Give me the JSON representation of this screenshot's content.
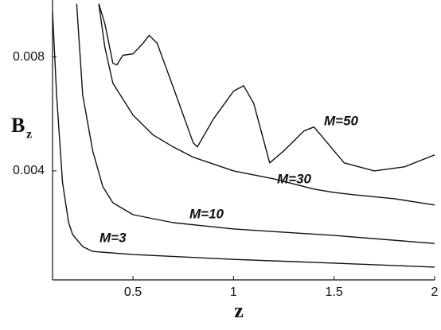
{
  "chart_data": {
    "type": "line",
    "xlabel": "z",
    "ylabel": "B",
    "ylabel_sub": "z",
    "xlim": [
      0.1,
      2
    ],
    "ylim": [
      0.00017,
      0.01
    ],
    "xticks": [
      0.5,
      1,
      1.5,
      2
    ],
    "yticks": [
      0.004,
      0.008
    ],
    "series": [
      {
        "name": "M=3",
        "color": "#111111",
        "x": [
          0.1,
          0.12,
          0.15,
          0.18,
          0.2,
          0.25,
          0.3,
          0.5,
          1,
          1.5,
          2
        ],
        "values": [
          0.0096,
          0.00666,
          0.00358,
          0.00218,
          0.00176,
          0.00134,
          0.00117,
          0.00106,
          0.00089,
          0.00076,
          0.00062
        ]
      },
      {
        "name": "M=10",
        "color": "#111111",
        "x": [
          0.22,
          0.25,
          0.3,
          0.35,
          0.4,
          0.5,
          0.7,
          1,
          1.5,
          2
        ],
        "values": [
          0.00987,
          0.00666,
          0.0047,
          0.00344,
          0.00288,
          0.00246,
          0.00218,
          0.00196,
          0.00173,
          0.00145
        ]
      },
      {
        "name": "M=30",
        "color": "#111111",
        "x": [
          0.33,
          0.36,
          0.4,
          0.5,
          0.6,
          0.7,
          0.8,
          1,
          1.2,
          1.4,
          1.5,
          1.6,
          1.8,
          2
        ],
        "values": [
          0.00987,
          0.00834,
          0.00708,
          0.00596,
          0.00526,
          0.00484,
          0.00448,
          0.004,
          0.00372,
          0.00336,
          0.00324,
          0.00316,
          0.00302,
          0.0028
        ]
      },
      {
        "name": "M=50",
        "color": "#111111",
        "x": [
          0.33,
          0.36,
          0.4,
          0.42,
          0.45,
          0.5,
          0.55,
          0.58,
          0.62,
          0.7,
          0.8,
          0.82,
          0.9,
          1.0,
          1.05,
          1.1,
          1.18,
          1.25,
          1.35,
          1.4,
          1.45,
          1.55,
          1.7,
          1.85,
          2
        ],
        "values": [
          0.00987,
          0.00917,
          0.00778,
          0.00772,
          0.00806,
          0.00811,
          0.00848,
          0.00876,
          0.00848,
          0.00694,
          0.00498,
          0.00484,
          0.00582,
          0.0068,
          0.00699,
          0.00638,
          0.00428,
          0.0047,
          0.0054,
          0.00554,
          0.00512,
          0.00428,
          0.004,
          0.00414,
          0.00456
        ]
      }
    ]
  }
}
